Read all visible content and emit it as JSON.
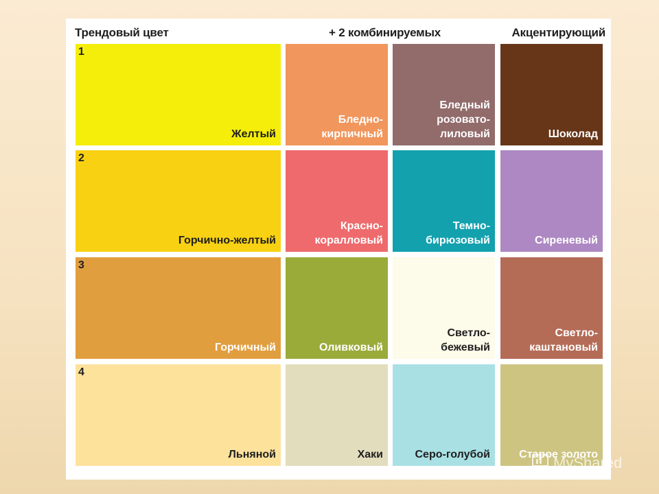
{
  "headers": {
    "trend": "Трендовый цвет",
    "combined": "+ 2 комбинируемых",
    "accent": "Акцентирующий"
  },
  "rows": [
    {
      "number": "1",
      "swatches": [
        {
          "label": "Желтый",
          "color": "#f5ee0a",
          "text_color": "#1e1e1e"
        },
        {
          "label": "Бледно-\nкирпичный",
          "color": "#f1965c",
          "text_color": "#ffffff"
        },
        {
          "label": "Бледный\nрозовато-\nлиловый",
          "color": "#926b6b",
          "text_color": "#ffffff"
        },
        {
          "label": "Шоколад",
          "color": "#673619",
          "text_color": "#ffffff"
        }
      ]
    },
    {
      "number": "2",
      "swatches": [
        {
          "label": "Горчично-желтый",
          "color": "#f8d112",
          "text_color": "#1e1e1e"
        },
        {
          "label": "Красно-\nкоралловый",
          "color": "#ee6a6c",
          "text_color": "#ffffff"
        },
        {
          "label": "Темно-\nбирюзовый",
          "color": "#13a1ae",
          "text_color": "#ffffff"
        },
        {
          "label": "Сиреневый",
          "color": "#ad88c2",
          "text_color": "#ffffff"
        }
      ]
    },
    {
      "number": "3",
      "swatches": [
        {
          "label": "Горчичный",
          "color": "#e19e3e",
          "text_color": "#ffffff"
        },
        {
          "label": "Оливковый",
          "color": "#9bab3a",
          "text_color": "#ffffff"
        },
        {
          "label": "Светло-\nбежевый",
          "color": "#fdfbe9",
          "text_color": "#1e1e1e"
        },
        {
          "label": "Светло-\nкаштановый",
          "color": "#b56c57",
          "text_color": "#ffffff"
        }
      ]
    },
    {
      "number": "4",
      "swatches": [
        {
          "label": "Льняной",
          "color": "#fde29c",
          "text_color": "#1e1e1e"
        },
        {
          "label": "Хаки",
          "color": "#e2ddbd",
          "text_color": "#1e1e1e"
        },
        {
          "label": "Серо-голубой",
          "color": "#a9e0e4",
          "text_color": "#1e1e1e"
        },
        {
          "label": "Старое золото",
          "color": "#cdc482",
          "text_color": "#ffffff"
        }
      ]
    }
  ],
  "watermark": {
    "text": "MyShared",
    "icon": "slideshow-board-icon"
  }
}
